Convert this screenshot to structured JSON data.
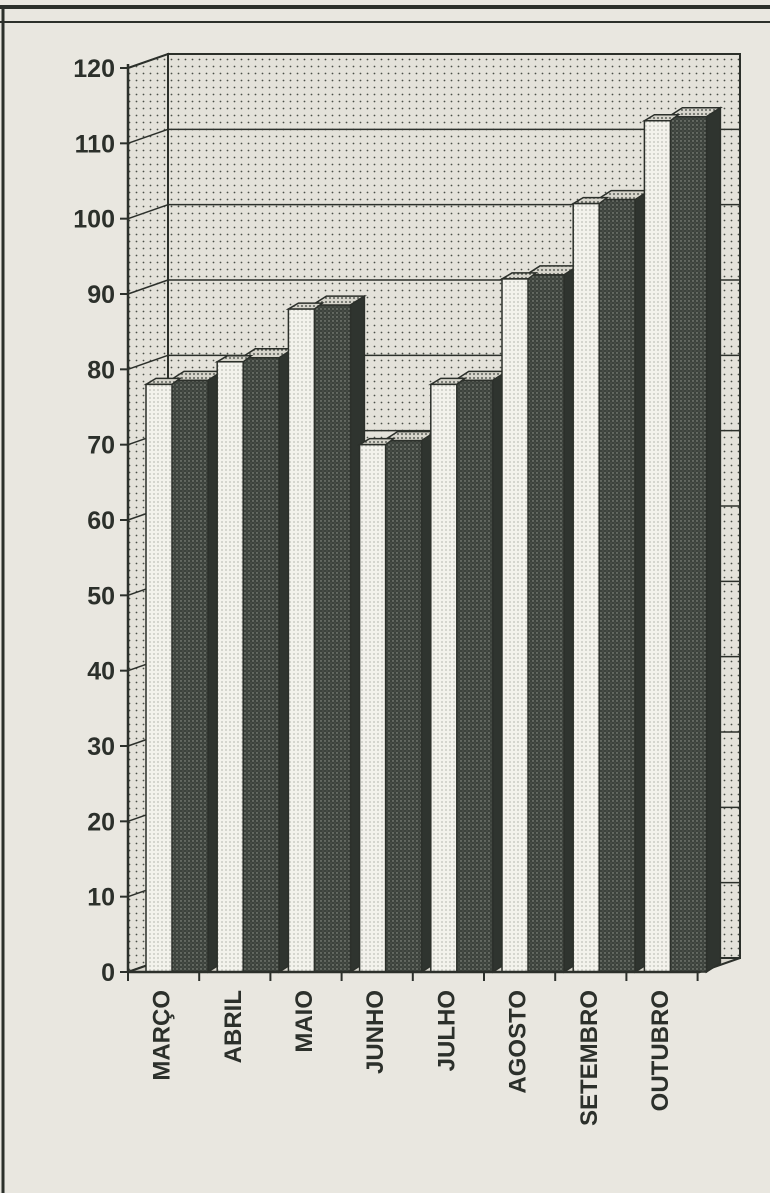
{
  "chart_data": {
    "type": "bar",
    "categories": [
      "MARÇO",
      "ABRIL",
      "MAIO",
      "JUNHO",
      "JULHO",
      "AGOSTO",
      "SETEMBRO",
      "OUTUBRO"
    ],
    "series": [
      {
        "values": [
          78,
          81,
          88,
          70,
          78,
          92,
          102,
          113
        ]
      },
      {
        "values": [
          78,
          81,
          88,
          70,
          78,
          92,
          102,
          113
        ]
      }
    ],
    "yticks": [
      "0",
      "10",
      "20",
      "30",
      "40",
      "50",
      "60",
      "70",
      "80",
      "90",
      "100",
      "110",
      "120"
    ],
    "ylim": [
      0,
      120
    ],
    "grid": true,
    "style": "3d",
    "colors": {
      "background": "#e9e7e0",
      "ink": "#2c302b",
      "wall": "#dedcd4",
      "bar_light": "#f2f1ec",
      "bar_dark": "#3c423c"
    }
  }
}
